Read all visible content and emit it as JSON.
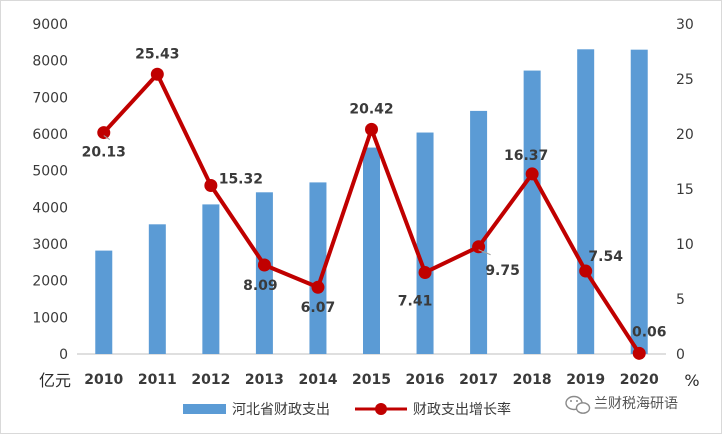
{
  "chart_data": {
    "type": "bar",
    "categories": [
      "2010",
      "2011",
      "2012",
      "2013",
      "2014",
      "2015",
      "2016",
      "2017",
      "2018",
      "2019",
      "2020"
    ],
    "series": [
      {
        "name": "河北省财政支出",
        "type": "bar",
        "axis": "left",
        "color": "#5b9bd5",
        "values": [
          2820,
          3537,
          4080,
          4410,
          4680,
          5630,
          6040,
          6630,
          7730,
          8310,
          8300
        ]
      },
      {
        "name": "财政支出增长率",
        "type": "line",
        "axis": "right",
        "color": "#c00000",
        "values": [
          20.13,
          25.43,
          15.32,
          8.09,
          6.07,
          20.42,
          7.41,
          9.75,
          16.37,
          7.54,
          0.06
        ]
      }
    ],
    "data_labels": [
      "20.13",
      "25.43",
      "15.32",
      "8.09",
      "6.07",
      "20.42",
      "7.41",
      "9.75",
      "16.37",
      "7.54",
      "0.06"
    ],
    "y_left": {
      "unit": "亿元",
      "min": 0,
      "max": 9000,
      "step": 1000,
      "ticks": [
        "0",
        "1000",
        "2000",
        "3000",
        "4000",
        "5000",
        "6000",
        "7000",
        "8000",
        "9000"
      ]
    },
    "y_right": {
      "unit": "%",
      "min": 0,
      "max": 30,
      "step": 5,
      "ticks": [
        "0",
        "5",
        "10",
        "15",
        "20",
        "25",
        "30"
      ]
    },
    "grid": false,
    "legend_position": "bottom-center",
    "watermark": "兰财税海研语"
  }
}
